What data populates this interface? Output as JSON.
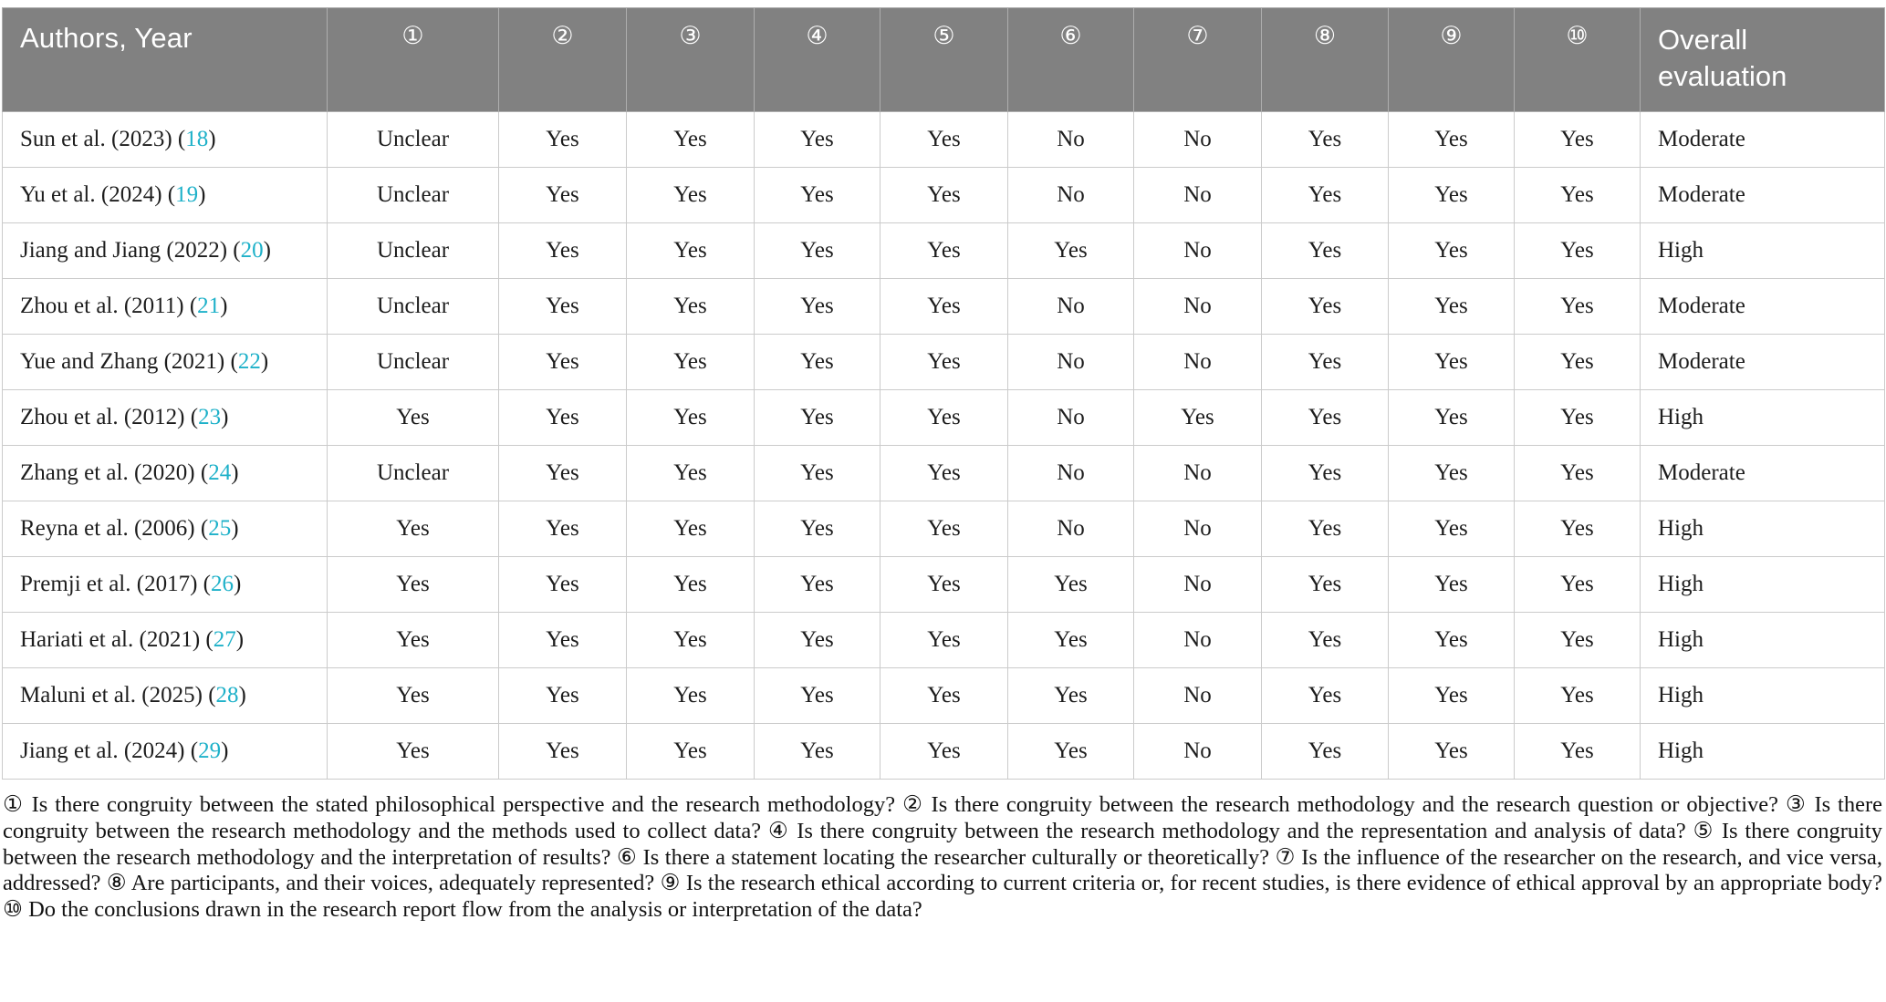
{
  "colors": {
    "header_background": "#818181",
    "header_text": "#ffffff",
    "cell_border": "#cbcbcb",
    "body_text": "#1d1d1d",
    "citation_link": "#1eb1c9"
  },
  "table": {
    "header": {
      "authors_label": "Authors, Year",
      "criteria": [
        "①",
        "②",
        "③",
        "④",
        "⑤",
        "⑥",
        "⑦",
        "⑧",
        "⑨",
        "⑩"
      ],
      "overall_label": "Overall evaluation"
    },
    "rows": [
      {
        "authors": "Sun et al. (2023)",
        "ref": "18",
        "values": [
          "Unclear",
          "Yes",
          "Yes",
          "Yes",
          "Yes",
          "No",
          "No",
          "Yes",
          "Yes",
          "Yes"
        ],
        "overall": "Moderate"
      },
      {
        "authors": "Yu et al. (2024)",
        "ref": "19",
        "values": [
          "Unclear",
          "Yes",
          "Yes",
          "Yes",
          "Yes",
          "No",
          "No",
          "Yes",
          "Yes",
          "Yes"
        ],
        "overall": "Moderate"
      },
      {
        "authors": "Jiang and Jiang (2022)",
        "ref": "20",
        "values": [
          "Unclear",
          "Yes",
          "Yes",
          "Yes",
          "Yes",
          "Yes",
          "No",
          "Yes",
          "Yes",
          "Yes"
        ],
        "overall": "High"
      },
      {
        "authors": "Zhou et al. (2011)",
        "ref": "21",
        "values": [
          "Unclear",
          "Yes",
          "Yes",
          "Yes",
          "Yes",
          "No",
          "No",
          "Yes",
          "Yes",
          "Yes"
        ],
        "overall": "Moderate"
      },
      {
        "authors": "Yue and Zhang (2021)",
        "ref": "22",
        "values": [
          "Unclear",
          "Yes",
          "Yes",
          "Yes",
          "Yes",
          "No",
          "No",
          "Yes",
          "Yes",
          "Yes"
        ],
        "overall": "Moderate"
      },
      {
        "authors": "Zhou et al. (2012)",
        "ref": "23",
        "values": [
          "Yes",
          "Yes",
          "Yes",
          "Yes",
          "Yes",
          "No",
          "Yes",
          "Yes",
          "Yes",
          "Yes"
        ],
        "overall": "High"
      },
      {
        "authors": "Zhang et al. (2020)",
        "ref": "24",
        "values": [
          "Unclear",
          "Yes",
          "Yes",
          "Yes",
          "Yes",
          "No",
          "No",
          "Yes",
          "Yes",
          "Yes"
        ],
        "overall": "Moderate"
      },
      {
        "authors": "Reyna et al. (2006)",
        "ref": "25",
        "values": [
          "Yes",
          "Yes",
          "Yes",
          "Yes",
          "Yes",
          "No",
          "No",
          "Yes",
          "Yes",
          "Yes"
        ],
        "overall": "High"
      },
      {
        "authors": "Premji et al. (2017)",
        "ref": "26",
        "values": [
          "Yes",
          "Yes",
          "Yes",
          "Yes",
          "Yes",
          "Yes",
          "No",
          "Yes",
          "Yes",
          "Yes"
        ],
        "overall": "High"
      },
      {
        "authors": "Hariati et al. (2021)",
        "ref": "27",
        "values": [
          "Yes",
          "Yes",
          "Yes",
          "Yes",
          "Yes",
          "Yes",
          "No",
          "Yes",
          "Yes",
          "Yes"
        ],
        "overall": "High"
      },
      {
        "authors": "Maluni et al. (2025)",
        "ref": "28",
        "values": [
          "Yes",
          "Yes",
          "Yes",
          "Yes",
          "Yes",
          "Yes",
          "No",
          "Yes",
          "Yes",
          "Yes"
        ],
        "overall": "High"
      },
      {
        "authors": "Jiang et al. (2024)",
        "ref": "29",
        "values": [
          "Yes",
          "Yes",
          "Yes",
          "Yes",
          "Yes",
          "Yes",
          "No",
          "Yes",
          "Yes",
          "Yes"
        ],
        "overall": "High"
      }
    ]
  },
  "footnote": "① Is there congruity between the stated philosophical perspective and the research methodology? ② Is there congruity between the research methodology and the research question or objective? ③ Is there congruity between the research methodology and the methods used to collect data? ④ Is there congruity between the research methodology and the representation and analysis of data? ⑤ Is there congruity between the research methodology and the interpretation of results? ⑥ Is there a statement locating the researcher culturally or theoretically? ⑦ Is the influence of the researcher on the research, and vice versa, addressed? ⑧ Are participants, and their voices, adequately represented? ⑨ Is the research ethical according to current criteria or, for recent studies, is there evidence of ethical approval by an appropriate body? ⑩ Do the conclusions drawn in the research report flow from the analysis or interpretation of the data?"
}
